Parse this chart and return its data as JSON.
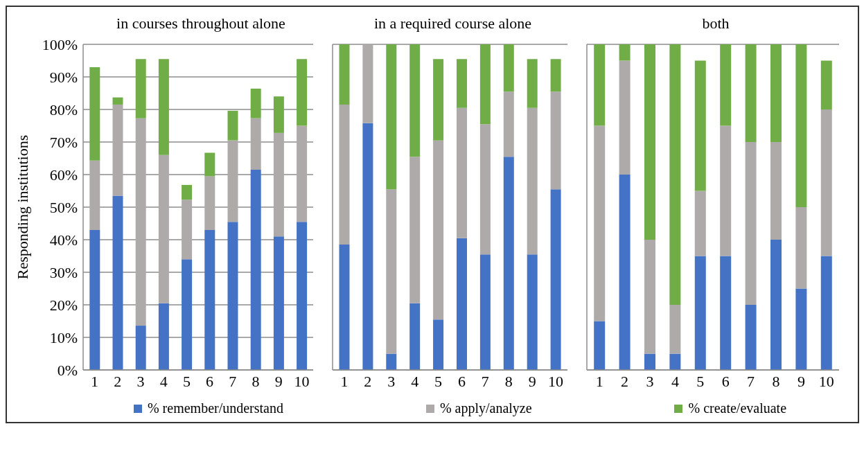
{
  "chart_data": [
    {
      "type": "bar",
      "title": "in courses throughout alone",
      "ylabel": "Responding institutions",
      "stacked": true,
      "categories": [
        "1",
        "2",
        "3",
        "4",
        "5",
        "6",
        "7",
        "8",
        "9",
        "10"
      ],
      "ylim": [
        0,
        100
      ],
      "yticks": [
        {
          "value": 0,
          "label": "0%"
        },
        {
          "value": 10,
          "label": "10%"
        },
        {
          "value": 20,
          "label": "20%"
        },
        {
          "value": 30,
          "label": "30%"
        },
        {
          "value": 40,
          "label": "40%"
        },
        {
          "value": 50,
          "label": "50%"
        },
        {
          "value": 60,
          "label": "60%"
        },
        {
          "value": 70,
          "label": "70%"
        },
        {
          "value": 80,
          "label": "80%"
        },
        {
          "value": 90,
          "label": "90%"
        },
        {
          "value": 100,
          "label": "100%"
        }
      ],
      "grid": "y",
      "legend": "bottom",
      "series": [
        {
          "name": "% remember/understand",
          "color": "#4472c4",
          "values": [
            43,
            53.5,
            13.6,
            20.5,
            34,
            43,
            45.5,
            61.5,
            41,
            45.5
          ]
        },
        {
          "name": "% apply/analyze",
          "color": "#aeaaaa",
          "values": [
            21.3,
            28,
            63.7,
            45.5,
            18.3,
            16.5,
            25,
            15.8,
            31.8,
            29.5
          ]
        },
        {
          "name": "% create/evaluate",
          "color": "#70ad47",
          "values": [
            28.7,
            2.2,
            18.2,
            29.5,
            4.5,
            7.2,
            9.1,
            9.1,
            11.2,
            20.5
          ]
        }
      ]
    },
    {
      "type": "bar",
      "title": "in a required course alone",
      "stacked": true,
      "categories": [
        "1",
        "2",
        "3",
        "4",
        "5",
        "6",
        "7",
        "8",
        "9",
        "10"
      ],
      "ylim": [
        0,
        100
      ],
      "grid": "y",
      "tick_labels": "x",
      "series": [
        {
          "color": "#4472c4",
          "values": [
            38.5,
            75.8,
            5,
            20.5,
            15.5,
            40.5,
            35.5,
            65.5,
            35.5,
            55.5
          ]
        },
        {
          "color": "#aeaaaa",
          "values": [
            43,
            24.2,
            50.5,
            45,
            55,
            40,
            40,
            20,
            45,
            30
          ]
        },
        {
          "color": "#70ad47",
          "values": [
            18.5,
            0,
            44.5,
            34.5,
            25,
            15,
            24.5,
            14.5,
            15,
            10
          ]
        }
      ]
    },
    {
      "type": "bar",
      "title": "both",
      "stacked": true,
      "categories": [
        "1",
        "2",
        "3",
        "4",
        "5",
        "6",
        "7",
        "8",
        "9",
        "10"
      ],
      "ylim": [
        0,
        100
      ],
      "grid": "y",
      "tick_labels": "x",
      "series": [
        {
          "color": "#4472c4",
          "values": [
            15,
            60,
            5,
            5,
            35,
            35,
            20,
            40,
            25,
            35
          ]
        },
        {
          "color": "#aeaaaa",
          "values": [
            60,
            35,
            35,
            15,
            20,
            40,
            50,
            30,
            25,
            45
          ]
        },
        {
          "color": "#70ad47",
          "values": [
            25,
            5,
            60,
            80,
            40,
            25,
            30,
            30,
            50,
            15
          ]
        }
      ]
    }
  ]
}
